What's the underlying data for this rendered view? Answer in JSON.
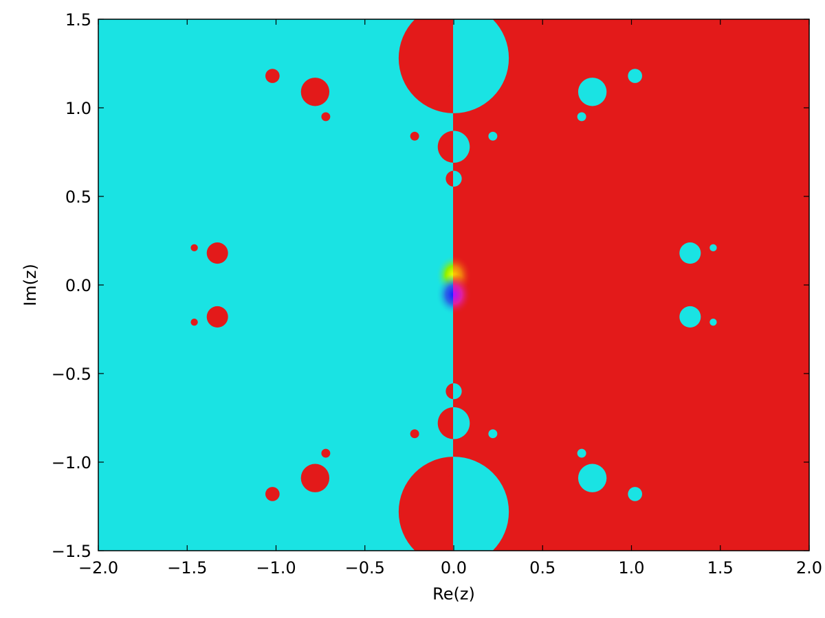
{
  "chart_data": {
    "type": "heatmap",
    "title": "",
    "xlabel": "Re(z)",
    "ylabel": "Im(z)",
    "xlim": [
      -2.0,
      2.0
    ],
    "ylim": [
      -1.5,
      1.5
    ],
    "xticks": [
      -2.0,
      -1.5,
      -1.0,
      -0.5,
      0.0,
      0.5,
      1.0,
      1.5,
      2.0
    ],
    "xtick_labels": [
      "−2.0",
      "−1.5",
      "−1.0",
      "−0.5",
      "0.0",
      "0.5",
      "1.0",
      "1.5",
      "2.0"
    ],
    "yticks": [
      1.5,
      1.0,
      0.5,
      0.0,
      -0.5,
      -1.0,
      -1.5
    ],
    "ytick_labels": [
      "1.5",
      "1.0",
      "0.5",
      "0.0",
      "−0.5",
      "−1.0",
      "−1.5"
    ],
    "grid": false,
    "colors": {
      "left_region": "#1ae3e3",
      "right_region": "#e31a1a"
    },
    "regions": [
      {
        "cx": 0.0,
        "cy": 1.28,
        "r": 0.31,
        "color": "#e31a1a",
        "split": true
      },
      {
        "cx": 0.0,
        "cy": -1.28,
        "r": 0.31,
        "color": "#e31a1a",
        "split": true
      },
      {
        "cx": 0.0,
        "cy": 0.78,
        "r": 0.09,
        "color": "#e31a1a",
        "split": true
      },
      {
        "cx": 0.0,
        "cy": -0.78,
        "r": 0.09,
        "color": "#e31a1a",
        "split": true
      },
      {
        "cx": 0.0,
        "cy": 0.6,
        "r": 0.045,
        "color": "#e31a1a",
        "split": true
      },
      {
        "cx": 0.0,
        "cy": -0.6,
        "r": 0.045,
        "color": "#e31a1a",
        "split": true
      },
      {
        "cx": 0.0,
        "cy": 1.1,
        "r": 0.035,
        "color": "#e31a1a",
        "split": true
      },
      {
        "cx": 0.0,
        "cy": -1.1,
        "r": 0.035,
        "color": "#e31a1a",
        "split": true
      },
      {
        "cx": -0.78,
        "cy": 1.09,
        "r": 0.08,
        "color": "#e31a1a"
      },
      {
        "cx": -0.78,
        "cy": -1.09,
        "r": 0.08,
        "color": "#e31a1a"
      },
      {
        "cx": 0.78,
        "cy": 1.09,
        "r": 0.08,
        "color": "#1ae3e3"
      },
      {
        "cx": 0.78,
        "cy": -1.09,
        "r": 0.08,
        "color": "#1ae3e3"
      },
      {
        "cx": -1.02,
        "cy": 1.18,
        "r": 0.04,
        "color": "#e31a1a"
      },
      {
        "cx": -1.02,
        "cy": -1.18,
        "r": 0.04,
        "color": "#e31a1a"
      },
      {
        "cx": 1.02,
        "cy": 1.18,
        "r": 0.04,
        "color": "#1ae3e3"
      },
      {
        "cx": 1.02,
        "cy": -1.18,
        "r": 0.04,
        "color": "#1ae3e3"
      },
      {
        "cx": -0.72,
        "cy": 0.95,
        "r": 0.025,
        "color": "#e31a1a"
      },
      {
        "cx": -0.72,
        "cy": -0.95,
        "r": 0.025,
        "color": "#e31a1a"
      },
      {
        "cx": 0.72,
        "cy": 0.95,
        "r": 0.025,
        "color": "#1ae3e3"
      },
      {
        "cx": 0.72,
        "cy": -0.95,
        "r": 0.025,
        "color": "#1ae3e3"
      },
      {
        "cx": -1.33,
        "cy": 0.18,
        "r": 0.06,
        "color": "#e31a1a"
      },
      {
        "cx": -1.33,
        "cy": -0.18,
        "r": 0.06,
        "color": "#e31a1a"
      },
      {
        "cx": 1.33,
        "cy": 0.18,
        "r": 0.06,
        "color": "#1ae3e3"
      },
      {
        "cx": 1.33,
        "cy": -0.18,
        "r": 0.06,
        "color": "#1ae3e3"
      },
      {
        "cx": -1.46,
        "cy": 0.21,
        "r": 0.02,
        "color": "#e31a1a"
      },
      {
        "cx": -1.46,
        "cy": -0.21,
        "r": 0.02,
        "color": "#e31a1a"
      },
      {
        "cx": 1.46,
        "cy": 0.21,
        "r": 0.02,
        "color": "#1ae3e3"
      },
      {
        "cx": 1.46,
        "cy": -0.21,
        "r": 0.02,
        "color": "#1ae3e3"
      },
      {
        "cx": -0.22,
        "cy": 0.84,
        "r": 0.025,
        "color": "#e31a1a"
      },
      {
        "cx": -0.22,
        "cy": -0.84,
        "r": 0.025,
        "color": "#e31a1a"
      },
      {
        "cx": 0.22,
        "cy": 0.84,
        "r": 0.025,
        "color": "#1ae3e3"
      },
      {
        "cx": 0.22,
        "cy": -0.84,
        "r": 0.025,
        "color": "#1ae3e3"
      }
    ],
    "singularity": {
      "x": 0.0,
      "y": 0.0
    }
  }
}
